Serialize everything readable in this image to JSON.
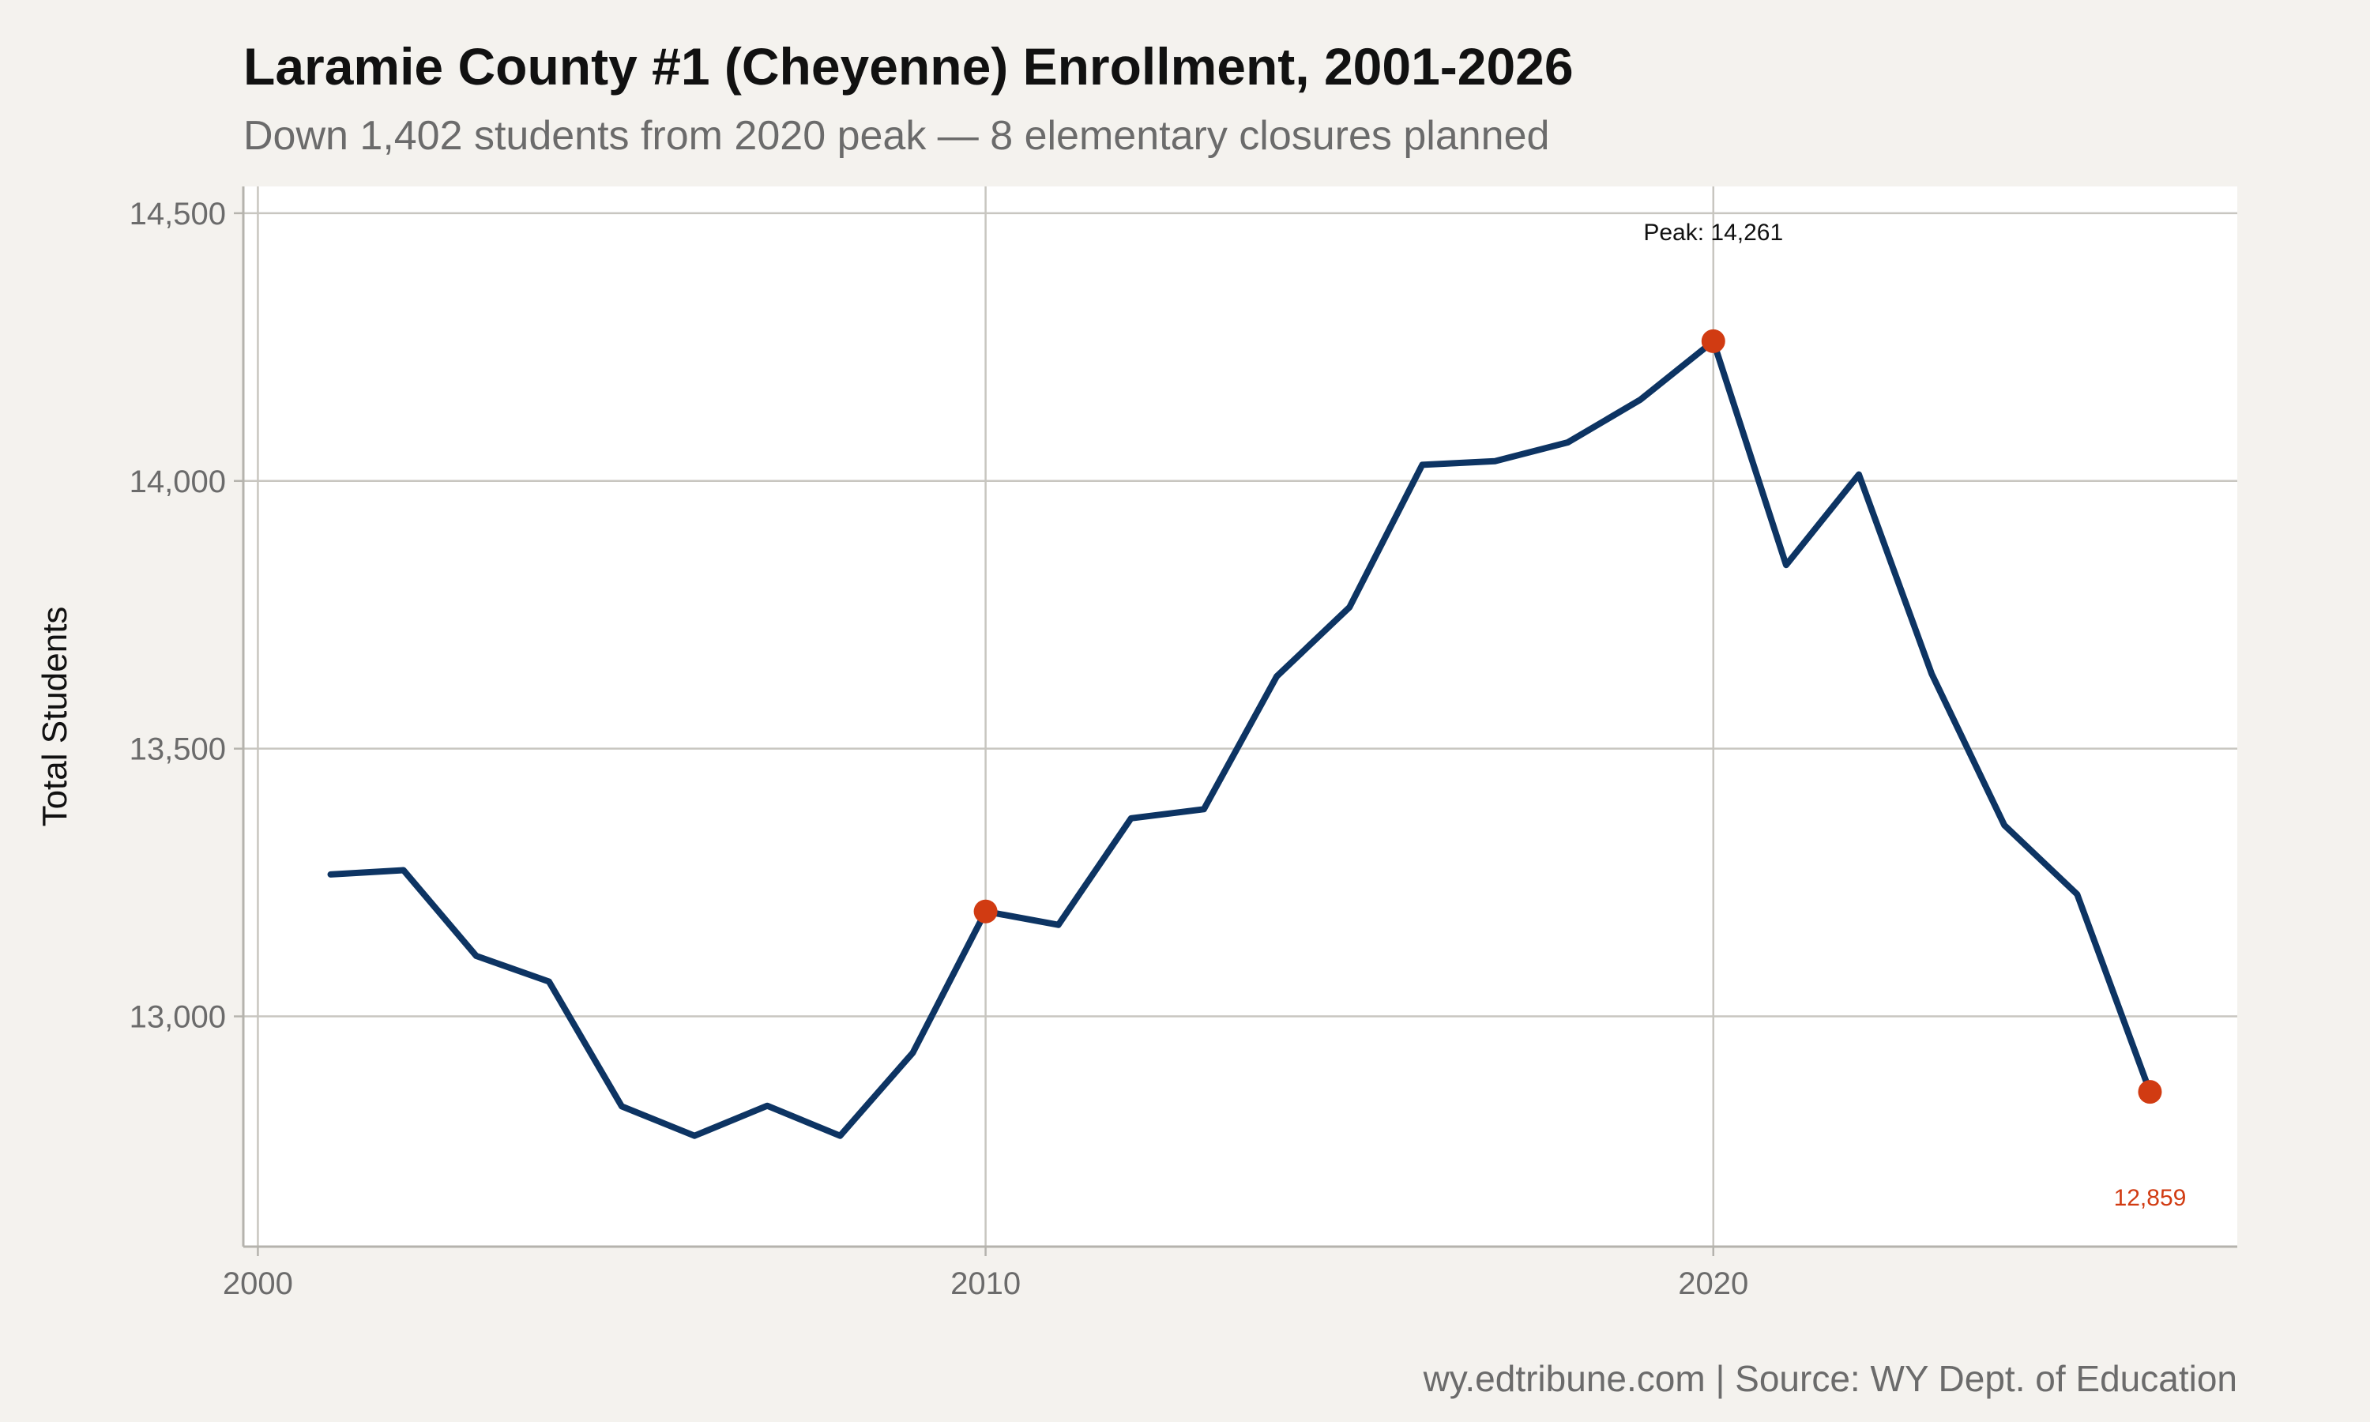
{
  "header": {
    "title": "Laramie County #1 (Cheyenne) Enrollment, 2001-2026",
    "subtitle": "Down 1,402 students from 2020 peak — 8 elementary closures planned"
  },
  "footer": {
    "caption": "wy.edtribune.com | Source: WY Dept. of Education"
  },
  "chart_data": {
    "type": "line",
    "ylabel": "Total Students",
    "xlim": [
      1999.8,
      2027.2
    ],
    "ylim": [
      12570,
      14550
    ],
    "x_ticks": [
      2000,
      2010,
      2020
    ],
    "x_tick_labels": [
      "2000",
      "2010",
      "2020"
    ],
    "y_ticks": [
      13000,
      13500,
      14000,
      14500
    ],
    "y_tick_labels": [
      "13,000",
      "13,500",
      "14,000",
      "14,500"
    ],
    "grid": true,
    "legend": "none",
    "line_color": "#0d3463",
    "highlight_color": "#d13b12",
    "series": [
      {
        "x": [
          2001,
          2002,
          2003,
          2004,
          2005,
          2006,
          2007,
          2008,
          2009,
          2010,
          2011,
          2012,
          2013,
          2014,
          2015,
          2016,
          2017,
          2018,
          2019,
          2020,
          2021,
          2022,
          2023,
          2024,
          2025,
          2026
        ],
        "values": [
          13265,
          13273,
          13113,
          13065,
          12832,
          12777,
          12833,
          12777,
          12932,
          13196,
          13171,
          13370,
          13387,
          13635,
          13764,
          14030,
          14037,
          14072,
          14152,
          14261,
          13843,
          14012,
          13640,
          13357,
          13228,
          12859
        ]
      }
    ],
    "highlight_points": [
      {
        "x": 2010,
        "y": 13196
      },
      {
        "x": 2020,
        "y": 14261
      },
      {
        "x": 2026,
        "y": 12859
      }
    ],
    "annotations": [
      {
        "x": 2020,
        "y": 14261,
        "text": "Peak: 14,261"
      },
      {
        "x": 2026,
        "y": 12859,
        "text": "12,859"
      }
    ]
  }
}
